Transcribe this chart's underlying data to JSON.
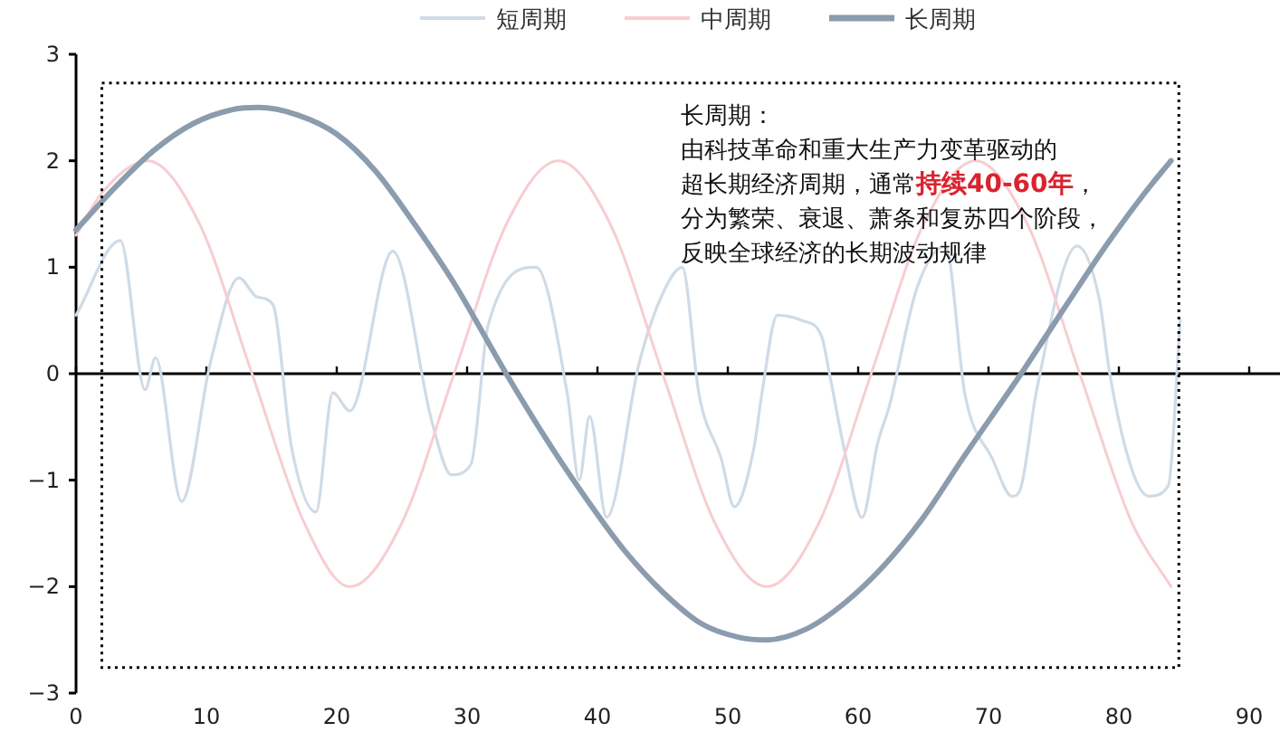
{
  "chart_data": {
    "type": "line",
    "xlim": [
      0,
      90
    ],
    "ylim": [
      -3,
      3
    ],
    "xticks": [
      0,
      10,
      20,
      30,
      40,
      50,
      60,
      70,
      80,
      90
    ],
    "yticks": [
      {
        "value": -3,
        "label": "−3"
      },
      {
        "value": -2,
        "label": "−2"
      },
      {
        "value": -1,
        "label": "−1"
      },
      0,
      1,
      2,
      3
    ],
    "grid": false,
    "ref_lines": [
      {
        "axis": "y",
        "value": 0,
        "color": "#000000"
      }
    ],
    "legend": "top",
    "marker": "none",
    "line_style": "solid",
    "annotations": [
      "长周期：",
      "由科技革命和重大生产力变革驱动的",
      "超长期经济周期，通常",
      "持续40-60年",
      "，",
      "分为繁荣、衰退、萧条和复苏四个阶段，",
      "反映全球经济的长期波动规律"
    ],
    "series": [
      {
        "name": "短周期",
        "color": "#cfdbe6",
        "x": [
          0,
          3.4,
          5.3,
          6.1,
          8.1,
          10.3,
          12.5,
          13.9,
          15.1,
          16.5,
          18.4,
          19.7,
          21,
          24.3,
          27.3,
          28.8,
          30.3,
          31.6,
          35.3,
          37.7,
          38.6,
          39.4,
          40.7,
          43.2,
          45,
          46.5,
          47.8,
          49.5,
          50.5,
          52,
          52.6,
          53.8,
          55.7,
          57.2,
          57.8,
          59,
          60.3,
          61.5,
          62.4,
          64.5,
          66.7,
          68.2,
          70.3,
          71.8,
          72.4,
          73.7,
          76.8,
          78.5,
          79.3,
          81,
          82.3,
          83.8,
          84.7
        ],
        "values": [
          0.55,
          1.25,
          -0.15,
          0.15,
          -1.2,
          0.1,
          0.9,
          0.72,
          0.65,
          -0.67,
          -1.3,
          -0.18,
          -0.35,
          1.15,
          -0.45,
          -0.95,
          -0.85,
          0.45,
          1.0,
          -0.2,
          -1.0,
          -0.4,
          -1.35,
          0.1,
          0.75,
          1.0,
          -0.2,
          -0.8,
          -1.25,
          -0.7,
          -0.2,
          0.55,
          0.5,
          0.35,
          0,
          -0.75,
          -1.35,
          -0.65,
          -0.3,
          0.8,
          1.2,
          -0.2,
          -0.8,
          -1.15,
          -1.1,
          -0.15,
          1.2,
          0.7,
          0,
          -0.9,
          -1.15,
          -1.05,
          0.5
        ]
      },
      {
        "name": "中周期",
        "color": "#f7cdd2",
        "x": [
          0,
          2,
          5.5,
          9.5,
          13.5,
          17.5,
          21,
          25,
          29,
          33,
          37,
          41,
          45,
          49,
          53,
          57,
          61,
          65,
          69,
          73,
          77,
          81,
          84
        ],
        "values": [
          1.3,
          1.7,
          2,
          1.4,
          0,
          -1.4,
          -2,
          -1.4,
          0,
          1.4,
          2,
          1.4,
          0,
          -1.4,
          -2,
          -1.4,
          0,
          1.4,
          2,
          1.4,
          0,
          -1.4,
          -2
        ]
      },
      {
        "name": "长周期",
        "color": "#8a9cad",
        "x": [
          0,
          3,
          6,
          9,
          12,
          14,
          17,
          20,
          23,
          26,
          29,
          33,
          36,
          39,
          42,
          45,
          48,
          51,
          53,
          56,
          59,
          62,
          65,
          68,
          72.5,
          76,
          79,
          82,
          84
        ],
        "values": [
          1.35,
          1.75,
          2.1,
          2.35,
          2.48,
          2.5,
          2.43,
          2.25,
          1.9,
          1.4,
          0.85,
          0,
          -0.6,
          -1.15,
          -1.65,
          -2.05,
          -2.35,
          -2.48,
          -2.5,
          -2.4,
          -2.15,
          -1.8,
          -1.35,
          -0.8,
          0,
          0.65,
          1.2,
          1.7,
          2.0
        ]
      }
    ]
  }
}
